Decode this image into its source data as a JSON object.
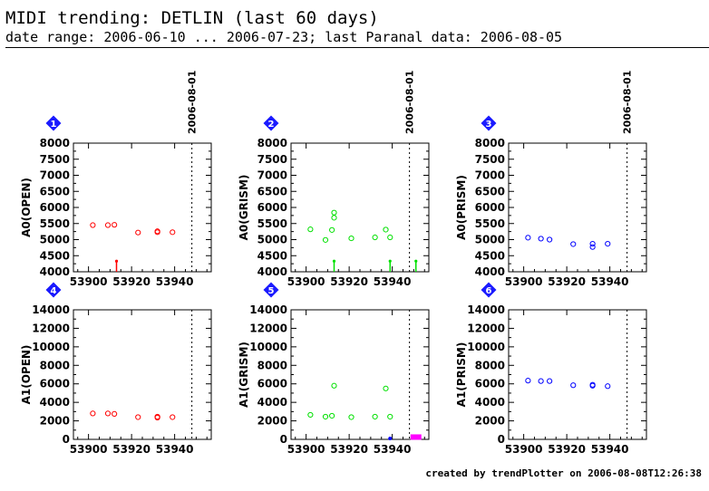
{
  "header": {
    "title": "MIDI trending: DETLIN (last 60 days)",
    "subtitle": "date range: 2006-06-10 ... 2006-07-23; last Paranal data: 2006-08-05"
  },
  "footer": {
    "text": "created by trendPlotter on 2006-08-08T12:26:38"
  },
  "colors": {
    "red": "#ff0000",
    "green": "#00e000",
    "blue": "#0000ff",
    "magenta": "#ff00ff",
    "badge": "#1a1aff"
  },
  "chart_data": [
    {
      "type": "scatter",
      "badge": "1",
      "ylabel": "A0(OPEN)",
      "color": "#ff0000",
      "xlim": [
        53893,
        53957
      ],
      "ylim": [
        4000,
        8000
      ],
      "yticks": [
        4000,
        4500,
        5000,
        5500,
        6000,
        6500,
        7000,
        7500,
        8000
      ],
      "xticks": [
        53900,
        53920,
        53940
      ],
      "marker_date": {
        "x": 53948,
        "label": "2006-08-01"
      },
      "points": [
        [
          53902,
          5450
        ],
        [
          53909,
          5450
        ],
        [
          53912,
          5460
        ],
        [
          53923,
          5220
        ],
        [
          53932,
          5260
        ],
        [
          53932,
          5230
        ],
        [
          53939,
          5230
        ]
      ],
      "spikes": [
        [
          53913,
          4330
        ]
      ]
    },
    {
      "type": "scatter",
      "badge": "2",
      "ylabel": "A0(GRISM)",
      "color": "#00e000",
      "xlim": [
        53893,
        53957
      ],
      "ylim": [
        4000,
        8000
      ],
      "yticks": [
        4000,
        4500,
        5000,
        5500,
        6000,
        6500,
        7000,
        7500,
        8000
      ],
      "xticks": [
        53900,
        53920,
        53940
      ],
      "marker_date": {
        "x": 53948,
        "label": "2006-08-01"
      },
      "points": [
        [
          53902,
          5320
        ],
        [
          53909,
          4990
        ],
        [
          53912,
          5300
        ],
        [
          53913,
          5840
        ],
        [
          53913,
          5680
        ],
        [
          53921,
          5040
        ],
        [
          53932,
          5070
        ],
        [
          53937,
          5310
        ],
        [
          53939,
          5070
        ]
      ],
      "spikes": [
        [
          53913,
          4330
        ],
        [
          53939,
          4330
        ],
        [
          53951,
          4330
        ]
      ]
    },
    {
      "type": "scatter",
      "badge": "3",
      "ylabel": "A0(PRISM)",
      "color": "#0000ff",
      "xlim": [
        53893,
        53957
      ],
      "ylim": [
        4000,
        8000
      ],
      "yticks": [
        4000,
        4500,
        5000,
        5500,
        6000,
        6500,
        7000,
        7500,
        8000
      ],
      "xticks": [
        53900,
        53920,
        53940
      ],
      "marker_date": {
        "x": 53948,
        "label": "2006-08-01"
      },
      "points": [
        [
          53902,
          5060
        ],
        [
          53908,
          5030
        ],
        [
          53912,
          5000
        ],
        [
          53923,
          4860
        ],
        [
          53932,
          4870
        ],
        [
          53932,
          4770
        ],
        [
          53939,
          4870
        ]
      ],
      "spikes": []
    },
    {
      "type": "scatter",
      "badge": "4",
      "ylabel": "A1(OPEN)",
      "color": "#ff0000",
      "xlim": [
        53893,
        53957
      ],
      "ylim": [
        0,
        14000
      ],
      "yticks": [
        0,
        2000,
        4000,
        6000,
        8000,
        10000,
        12000,
        14000
      ],
      "xticks": [
        53900,
        53920,
        53940
      ],
      "marker_date": {
        "x": 53948
      },
      "points": [
        [
          53902,
          2800
        ],
        [
          53909,
          2800
        ],
        [
          53912,
          2750
        ],
        [
          53923,
          2400
        ],
        [
          53932,
          2450
        ],
        [
          53932,
          2350
        ],
        [
          53939,
          2400
        ]
      ],
      "spikes": []
    },
    {
      "type": "scatter",
      "badge": "5",
      "ylabel": "A1(GRISM)",
      "color": "#00e000",
      "xlim": [
        53893,
        53957
      ],
      "ylim": [
        0,
        14000
      ],
      "yticks": [
        0,
        2000,
        4000,
        6000,
        8000,
        10000,
        12000,
        14000
      ],
      "xticks": [
        53900,
        53920,
        53940
      ],
      "marker_date": {
        "x": 53948
      },
      "points": [
        [
          53902,
          2650
        ],
        [
          53909,
          2450
        ],
        [
          53912,
          2550
        ],
        [
          53913,
          5800
        ],
        [
          53921,
          2400
        ],
        [
          53932,
          2450
        ],
        [
          53937,
          5500
        ],
        [
          53939,
          2450
        ]
      ],
      "spikes": [],
      "extra": [
        {
          "x": 53939,
          "y": 100,
          "color": "#0000ff"
        },
        {
          "x": 53951,
          "y": 150,
          "color": "#ff00ff",
          "cluster": true
        }
      ]
    },
    {
      "type": "scatter",
      "badge": "6",
      "ylabel": "A1(PRISM)",
      "color": "#0000ff",
      "xlim": [
        53893,
        53957
      ],
      "ylim": [
        0,
        14000
      ],
      "yticks": [
        0,
        2000,
        4000,
        6000,
        8000,
        10000,
        12000,
        14000
      ],
      "xticks": [
        53900,
        53920,
        53940
      ],
      "marker_date": {
        "x": 53948
      },
      "points": [
        [
          53902,
          6350
        ],
        [
          53908,
          6300
        ],
        [
          53912,
          6300
        ],
        [
          53923,
          5850
        ],
        [
          53932,
          5900
        ],
        [
          53932,
          5800
        ],
        [
          53939,
          5750
        ]
      ],
      "spikes": []
    }
  ]
}
